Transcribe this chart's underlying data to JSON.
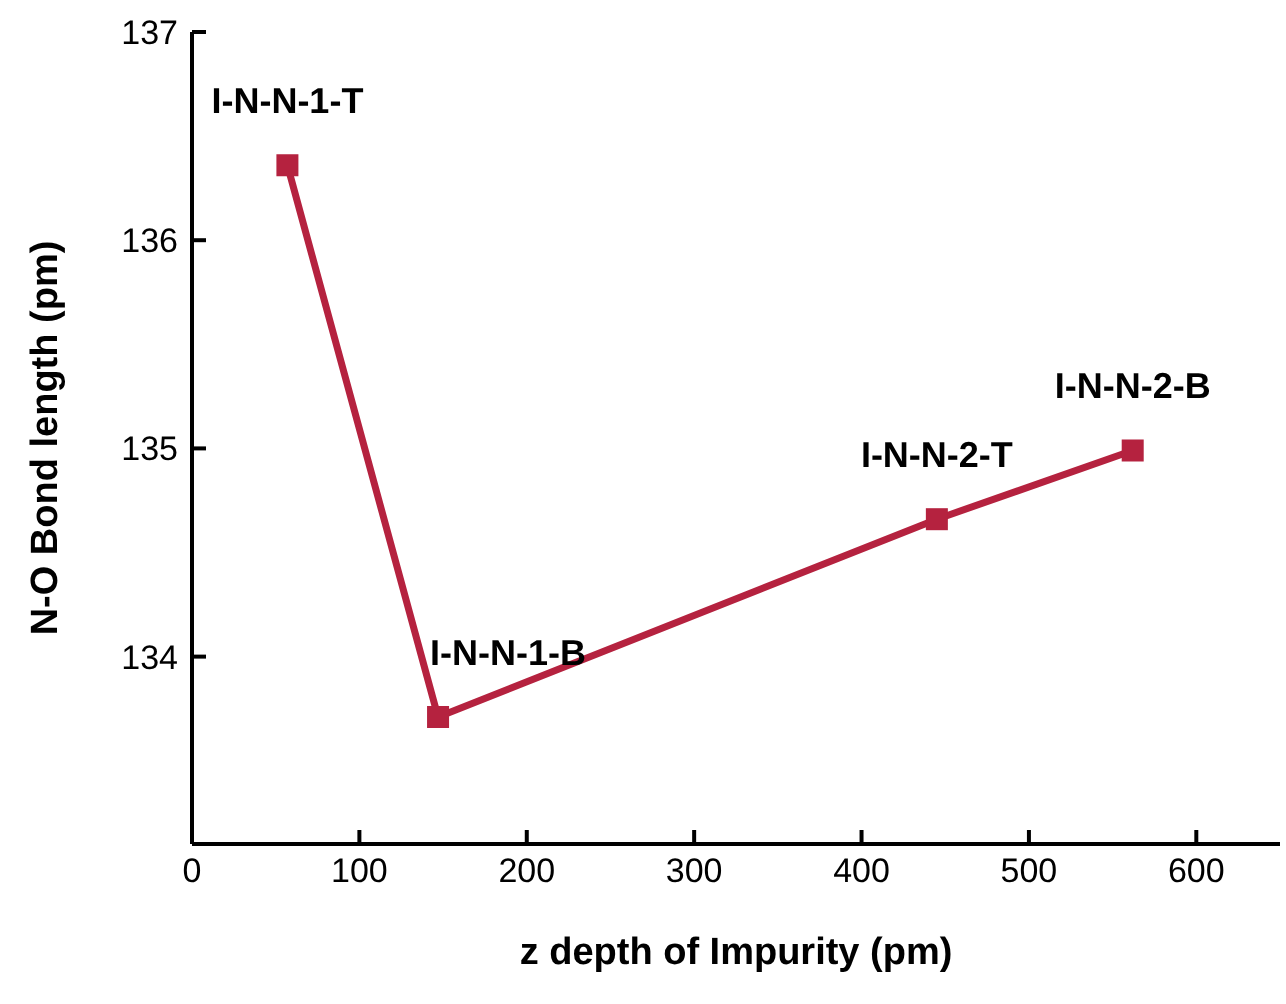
{
  "chart_data": {
    "type": "line",
    "xlabel": "z depth of Impurity (pm)",
    "ylabel": "N-O Bond length (pm)",
    "x": [
      57,
      147,
      445,
      562
    ],
    "series": [
      {
        "color": "#b5223f",
        "values": [
          136.36,
          133.71,
          134.66,
          134.99
        ]
      }
    ],
    "xlim": [
      0,
      650
    ],
    "xticks": [
      0,
      100,
      200,
      300,
      400,
      500,
      600
    ],
    "ylim": [
      133.1,
      137
    ],
    "yticks": [
      134,
      135,
      136,
      137
    ],
    "marker": "square",
    "line_style": "solid",
    "grid": false,
    "legend": false,
    "annotations": [
      {
        "text": "I-N-N-1-T",
        "x": 57,
        "y": 136.36
      },
      {
        "text": "I-N-N-1-B",
        "x": 147,
        "y": 133.71
      },
      {
        "text": "I-N-N-2-T",
        "x": 445,
        "y": 134.66
      },
      {
        "text": "I-N-N-2-B",
        "x": 562,
        "y": 134.99
      }
    ]
  }
}
